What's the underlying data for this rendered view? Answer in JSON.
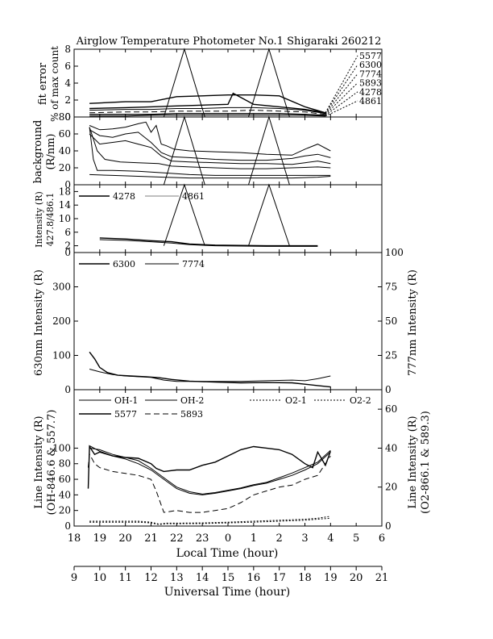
{
  "title": "Airglow Temperature Photometer No.1  Shigaraki  260212",
  "x_axes": {
    "local": {
      "label": "Local Time (hour)",
      "ticks": [
        "18",
        "19",
        "20",
        "21",
        "22",
        "23",
        "0",
        "1",
        "2",
        "3",
        "4",
        "5",
        "6"
      ]
    },
    "universal": {
      "label": "Universal Time (hour)",
      "ticks": [
        "9",
        "10",
        "11",
        "12",
        "13",
        "14",
        "15",
        "16",
        "17",
        "18",
        "19",
        "20",
        "21"
      ]
    }
  },
  "colors": {
    "ink": "#000000",
    "background": "#ffffff"
  },
  "chart_data": [
    {
      "id": "fit-error",
      "type": "line",
      "ylabel": [
        "fit error",
        "% of max count"
      ],
      "ylim": [
        0,
        8
      ],
      "yticks": [
        "0",
        "2",
        "4",
        "6",
        "8"
      ],
      "series": [
        {
          "name": "5577",
          "x": [
            9.6,
            11.0,
            12.0,
            13.0,
            14.0,
            15.0,
            16.0,
            17.0,
            18.0,
            18.8
          ],
          "y": [
            1.6,
            1.8,
            1.8,
            2.4,
            2.5,
            2.6,
            2.6,
            2.5,
            1.2,
            0.5
          ]
        },
        {
          "name": "6300",
          "x": [
            9.6,
            11.0,
            12.0,
            13.0,
            14.0,
            15.0,
            15.2,
            16.0,
            17.0,
            18.0,
            18.8
          ],
          "y": [
            1.0,
            1.1,
            1.2,
            1.3,
            1.4,
            1.5,
            2.8,
            1.5,
            1.2,
            0.9,
            0.5
          ]
        },
        {
          "name": "7774",
          "x": [
            9.6,
            11.0,
            12.0,
            13.0,
            14.0,
            15.0,
            16.0,
            17.0,
            18.0,
            18.8
          ],
          "y": [
            0.8,
            0.9,
            0.9,
            1.0,
            1.0,
            1.1,
            1.1,
            1.0,
            0.8,
            0.4
          ]
        },
        {
          "name": "5893",
          "x": [
            9.6,
            11.0,
            12.0,
            13.0,
            14.0,
            15.0,
            16.0,
            17.0,
            18.0,
            18.8
          ],
          "y": [
            0.5,
            0.6,
            0.6,
            0.7,
            0.7,
            0.7,
            0.8,
            0.7,
            0.6,
            0.3
          ]
        },
        {
          "name": "4278",
          "x": [
            9.6,
            11.0,
            12.0,
            13.0,
            14.0,
            15.0,
            16.0,
            17.0,
            18.0,
            18.8
          ],
          "y": [
            0.3,
            0.3,
            0.3,
            0.4,
            0.4,
            0.4,
            0.4,
            0.4,
            0.3,
            0.2
          ]
        },
        {
          "name": "4861",
          "x": [
            9.6,
            11.0,
            12.0,
            13.0,
            14.0,
            15.0,
            16.0,
            17.0,
            18.0,
            18.8
          ],
          "y": [
            0.1,
            0.1,
            0.2,
            0.2,
            0.2,
            0.2,
            0.2,
            0.2,
            0.2,
            0.1
          ]
        },
        {
          "name": "",
          "x": [
            12.5,
            13.3,
            14.1
          ],
          "y": [
            0,
            8,
            0
          ]
        },
        {
          "name": "",
          "x": [
            15.8,
            16.6,
            17.4
          ],
          "y": [
            0,
            8,
            0
          ]
        }
      ],
      "legend": [
        "5577",
        "6300",
        "7774",
        "5893",
        "4278",
        "4861"
      ],
      "legend_placement": "right"
    },
    {
      "id": "background",
      "type": "line",
      "ylabel": [
        "background",
        "(R/nm)"
      ],
      "ylim": [
        0,
        80
      ],
      "yticks": [
        "0",
        "20",
        "40",
        "60",
        "80"
      ],
      "series": [
        {
          "name": "",
          "x": [
            9.6,
            10.0,
            10.5,
            11.0,
            11.5,
            11.8,
            12.0,
            12.2,
            12.4,
            12.6,
            12.9,
            13.5,
            14.5,
            15.5,
            16.5,
            17.5,
            18.0,
            18.5,
            19.0
          ],
          "y": [
            70,
            65,
            66,
            68,
            72,
            74,
            62,
            70,
            48,
            46,
            42,
            40,
            39,
            38,
            36,
            35,
            42,
            48,
            40
          ]
        },
        {
          "name": "",
          "x": [
            9.6,
            10.0,
            10.5,
            11.0,
            11.5,
            12.0,
            12.4,
            12.8,
            13.5,
            14.5,
            15.5,
            16.5,
            17.5,
            18.0,
            18.5,
            19.0
          ],
          "y": [
            65,
            58,
            56,
            60,
            62,
            50,
            38,
            33,
            32,
            30,
            29,
            29,
            31,
            34,
            36,
            32
          ]
        },
        {
          "name": "",
          "x": [
            9.6,
            10.0,
            10.5,
            11.0,
            11.5,
            12.0,
            12.4,
            12.8,
            13.5,
            14.5,
            15.5,
            16.5,
            17.5,
            18.0,
            18.5,
            19.0
          ],
          "y": [
            60,
            48,
            50,
            52,
            48,
            44,
            34,
            28,
            27,
            26,
            25,
            25,
            24,
            26,
            28,
            25
          ]
        },
        {
          "name": "",
          "x": [
            9.6,
            9.9,
            10.2,
            10.8,
            11.5,
            12.3,
            12.8,
            13.5,
            14.5,
            15.5,
            16.5,
            17.5,
            18.5,
            19.0
          ],
          "y": [
            68,
            40,
            30,
            27,
            26,
            25,
            22,
            21,
            20,
            19,
            19,
            20,
            21,
            20
          ]
        },
        {
          "name": "",
          "x": [
            9.6,
            9.75,
            9.9,
            10.5,
            11.5,
            12.5,
            13.5,
            14.5,
            15.5,
            16.5,
            17.5,
            18.5,
            19.0
          ],
          "y": [
            68,
            30,
            17,
            17,
            16,
            14,
            12,
            11,
            11,
            11,
            11,
            11,
            11
          ]
        },
        {
          "name": "",
          "x": [
            9.6,
            10.5,
            11.5,
            12.5,
            13.5,
            14.5,
            15.5,
            16.5,
            17.5,
            18.5,
            19.0
          ],
          "y": [
            12,
            11,
            10,
            9,
            8,
            8,
            8,
            8,
            8,
            9,
            10
          ]
        },
        {
          "name": "",
          "x": [
            12.5,
            13.3,
            14.1
          ],
          "y": [
            0,
            80,
            0
          ]
        },
        {
          "name": "",
          "x": [
            15.8,
            16.6,
            17.4
          ],
          "y": [
            0,
            80,
            0
          ]
        }
      ]
    },
    {
      "id": "intensity-blue",
      "type": "line",
      "ylabel": [
        "Intensity (R)",
        "427.8/486.1"
      ],
      "ylim": [
        0,
        20
      ],
      "yticks": [
        "0",
        "2",
        "6",
        "10",
        "14",
        "18"
      ],
      "series": [
        {
          "name": "4278",
          "x": [
            10.0,
            11.0,
            12.0,
            12.8,
            13.5,
            14.5,
            15.5,
            16.5,
            17.5,
            18.5
          ],
          "y": [
            4.3,
            4.0,
            3.5,
            3.2,
            2.5,
            2.2,
            2.1,
            2.0,
            2.0,
            2.0
          ]
        },
        {
          "name": "4861",
          "x": [
            10.0,
            11.0,
            12.0,
            12.8,
            13.5,
            14.5,
            15.5,
            16.5,
            17.5,
            18.5
          ],
          "y": [
            3.8,
            3.6,
            3.2,
            2.8,
            2.3,
            2.0,
            1.9,
            1.8,
            1.8,
            1.8
          ]
        },
        {
          "name": "",
          "x": [
            12.5,
            13.3,
            14.1
          ],
          "y": [
            2.0,
            20,
            2.0
          ]
        },
        {
          "name": "",
          "x": [
            15.8,
            16.6,
            17.4
          ],
          "y": [
            2.0,
            20,
            2.0
          ]
        }
      ],
      "legend": [
        "4278",
        "4861"
      ],
      "legend_placement": "top-left"
    },
    {
      "id": "red-ir",
      "type": "line",
      "ylabel": "630nm Intensity (R)",
      "ylim": [
        0,
        400
      ],
      "yticks": [
        "0",
        "100",
        "200",
        "300"
      ],
      "ylabel_right": "777nm Intensity (R)",
      "ylim_right": [
        0,
        100
      ],
      "yticks_right": [
        "0",
        "25",
        "50",
        "75",
        "100"
      ],
      "series": [
        {
          "name": "6300",
          "axis": "left",
          "x": [
            9.6,
            9.8,
            10.0,
            10.3,
            10.7,
            11.2,
            11.8,
            12.3,
            12.8,
            13.5,
            14.5,
            15.5,
            16.5,
            17.5,
            18.5,
            19.0
          ],
          "y": [
            110,
            90,
            65,
            50,
            42,
            40,
            38,
            35,
            30,
            25,
            22,
            20,
            21,
            20,
            12,
            8
          ]
        },
        {
          "name": "7774",
          "axis": "right",
          "x": [
            9.6,
            10.0,
            10.5,
            11.0,
            11.5,
            12.0,
            12.5,
            13.0,
            13.5,
            14.5,
            15.5,
            16.5,
            17.5,
            18.0,
            18.5,
            19.0
          ],
          "y": [
            15,
            13,
            11,
            10,
            9.5,
            9,
            7,
            6,
            6,
            6,
            6,
            6.5,
            7,
            6.5,
            8,
            10
          ]
        }
      ],
      "legend": [
        "6300",
        "7774"
      ],
      "legend_placement": "top-left"
    },
    {
      "id": "line-intensity",
      "type": "line",
      "ylabel": [
        "Line Intensity (R)",
        "(OH-846.6 & 557.7)"
      ],
      "ylim": [
        0,
        175
      ],
      "yticks": [
        "0",
        "20",
        "40",
        "60",
        "80",
        "100"
      ],
      "ylabel_right": [
        "Line Intensity (R)",
        "(O2-866.1 & 589.3)"
      ],
      "ylim_right": [
        0,
        70
      ],
      "yticks_right": [
        "0",
        "20",
        "40",
        "60"
      ],
      "series": [
        {
          "name": "OH-1",
          "axis": "left",
          "x": [
            9.6,
            10.0,
            10.5,
            11.0,
            11.5,
            12.0,
            12.5,
            13.0,
            13.5,
            14.0,
            14.5,
            15.0,
            15.5,
            16.0,
            16.5,
            17.0,
            17.5,
            18.0,
            18.5,
            19.0
          ],
          "y": [
            103,
            96,
            90,
            86,
            80,
            72,
            60,
            48,
            42,
            40,
            42,
            45,
            48,
            52,
            55,
            60,
            65,
            72,
            80,
            95
          ]
        },
        {
          "name": "OH-2",
          "axis": "left",
          "x": [
            9.6,
            10.0,
            10.5,
            11.0,
            11.5,
            12.0,
            12.5,
            13.0,
            13.5,
            14.0,
            14.5,
            15.0,
            15.5,
            16.0,
            16.5,
            17.0,
            17.5,
            18.0,
            18.5,
            19.0
          ],
          "y": [
            100,
            98,
            92,
            88,
            84,
            74,
            62,
            50,
            44,
            41,
            43,
            46,
            49,
            53,
            56,
            62,
            68,
            75,
            82,
            97
          ]
        },
        {
          "name": "O2-1",
          "axis": "right",
          "x": [
            9.6,
            10.5,
            11.5,
            12.0,
            12.3,
            12.6,
            13.0,
            14.0,
            15.0,
            16.0,
            17.0,
            18.0,
            18.5,
            19.0
          ],
          "y": [
            2.5,
            2.5,
            2.5,
            2.0,
            1.0,
            1.5,
            1.5,
            1.6,
            2.0,
            2.5,
            3.0,
            3.5,
            4.0,
            5.0
          ]
        },
        {
          "name": "O2-2",
          "axis": "right",
          "x": [
            9.6,
            10.5,
            11.5,
            12.0,
            12.3,
            12.6,
            13.0,
            14.0,
            15.0,
            16.0,
            17.0,
            18.0,
            18.5,
            19.0
          ],
          "y": [
            2.0,
            2.0,
            2.0,
            1.6,
            0.8,
            1.2,
            1.2,
            1.3,
            1.6,
            2.0,
            2.5,
            3.0,
            3.5,
            4.0
          ]
        },
        {
          "name": "5577",
          "axis": "left",
          "x": [
            9.55,
            9.6,
            9.8,
            10.0,
            10.5,
            11.0,
            11.5,
            12.0,
            12.2,
            12.5,
            13.0,
            13.5,
            14.0,
            14.5,
            15.0,
            15.5,
            16.0,
            16.5,
            17.0,
            17.5,
            18.0,
            18.3,
            18.5,
            18.8,
            19.0
          ],
          "y": [
            48,
            102,
            92,
            95,
            90,
            88,
            87,
            80,
            74,
            70,
            72,
            72,
            78,
            82,
            90,
            98,
            102,
            100,
            98,
            92,
            80,
            75,
            95,
            78,
            96
          ]
        },
        {
          "name": "5893",
          "axis": "right",
          "x": [
            9.55,
            9.6,
            9.8,
            10.0,
            10.5,
            11.0,
            11.5,
            12.0,
            12.2,
            12.5,
            13.0,
            13.5,
            14.0,
            14.5,
            15.0,
            15.5,
            16.0,
            16.5,
            17.0,
            17.5,
            18.0,
            18.5,
            19.0
          ],
          "y": [
            30,
            37,
            32,
            30,
            28,
            27,
            26,
            24,
            18,
            7,
            8,
            7,
            7,
            8,
            9,
            12,
            16,
            18,
            20,
            21,
            24,
            26,
            36
          ]
        }
      ],
      "legend": [
        "OH-1",
        "OH-2",
        "O2-1",
        "O2-2",
        "5577",
        "5893"
      ],
      "legend_placement": "top"
    }
  ]
}
